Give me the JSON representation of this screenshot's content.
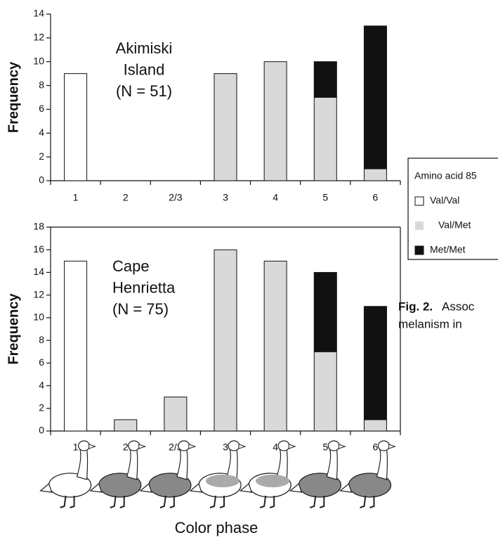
{
  "chart_data": [
    {
      "type": "bar",
      "stacked": true,
      "annotation_lines": [
        "Akimiski",
        "Island",
        "(N = 51)"
      ],
      "ylabel": "Frequency",
      "categories": [
        "1",
        "2",
        "2/3",
        "3",
        "4",
        "5",
        "6"
      ],
      "series": [
        {
          "values": [
            9,
            0,
            0,
            0,
            0,
            0,
            0
          ]
        },
        {
          "values": [
            0,
            0,
            0,
            9,
            10,
            7,
            1
          ]
        },
        {
          "values": [
            0,
            0,
            0,
            0,
            0,
            3,
            12
          ]
        }
      ],
      "ylim": [
        0,
        14
      ],
      "yticks": [
        0,
        2,
        4,
        6,
        8,
        10,
        12,
        14
      ],
      "frame": false
    },
    {
      "type": "bar",
      "stacked": true,
      "annotation_lines": [
        "Cape",
        "Henrietta",
        "(N = 75)"
      ],
      "ylabel": "Frequency",
      "categories": [
        "1",
        "2",
        "2/3",
        "3",
        "4",
        "5",
        "6"
      ],
      "series": [
        {
          "values": [
            15,
            0,
            0,
            0,
            0,
            0,
            0
          ]
        },
        {
          "values": [
            0,
            1,
            3,
            16,
            15,
            7,
            1
          ]
        },
        {
          "values": [
            0,
            0,
            0,
            0,
            0,
            7,
            10
          ]
        }
      ],
      "ylim": [
        0,
        18
      ],
      "yticks": [
        0,
        2,
        4,
        6,
        8,
        10,
        12,
        14,
        16,
        18
      ],
      "frame": true
    }
  ],
  "xlabel": "Color phase",
  "legend": {
    "title": "Amino acid 85",
    "items": [
      {
        "name": "Val/Val",
        "color": "#ffffff"
      },
      {
        "name": "Val/Met",
        "color": "#d9d9d9"
      },
      {
        "name": "Met/Met",
        "color": "#111111"
      }
    ]
  },
  "caption": {
    "label": "Fig. 2.",
    "lines": [
      "Assoc",
      "melanism in"
    ]
  }
}
